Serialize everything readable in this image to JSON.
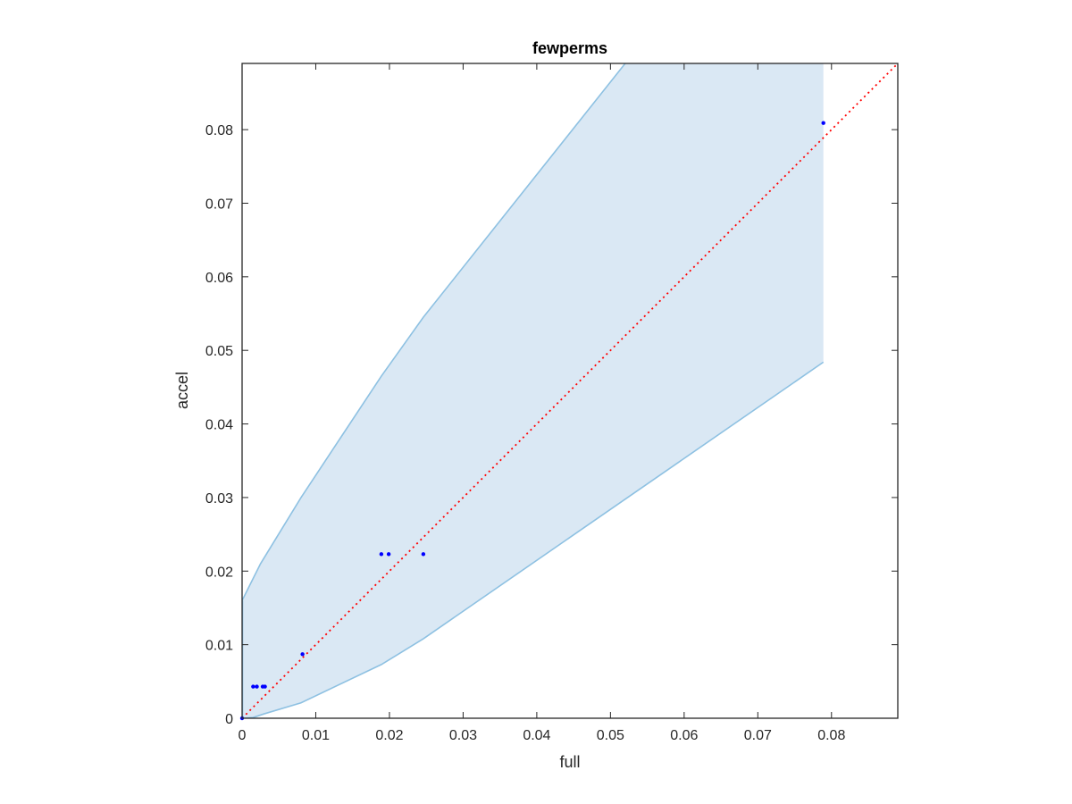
{
  "chart_data": {
    "type": "scatter",
    "title": "fewperms",
    "xlabel": "full",
    "ylabel": "accel",
    "xlim": [
      0,
      0.089
    ],
    "ylim": [
      0,
      0.089
    ],
    "xticks": [
      "0",
      "0.01",
      "0.02",
      "0.03",
      "0.04",
      "0.05",
      "0.06",
      "0.07",
      "0.08"
    ],
    "yticks": [
      "0",
      "0.01",
      "0.02",
      "0.03",
      "0.04",
      "0.05",
      "0.06",
      "0.07",
      "0.08"
    ],
    "grid": false,
    "box": true,
    "points": [
      [
        0,
        0
      ],
      [
        0.0015,
        0.0043
      ],
      [
        0.002,
        0.0043
      ],
      [
        0.0028,
        0.0043
      ],
      [
        0.0031,
        0.0043
      ],
      [
        0.0082,
        0.0087
      ],
      [
        0.0189,
        0.0223
      ],
      [
        0.0199,
        0.0223
      ],
      [
        0.0246,
        0.0223
      ],
      [
        0.0789,
        0.0809
      ]
    ],
    "band": {
      "upper": [
        [
          0,
          0.016
        ],
        [
          0.001,
          0.018
        ],
        [
          0.0025,
          0.021
        ],
        [
          0.008,
          0.03
        ],
        [
          0.0189,
          0.0465
        ],
        [
          0.0246,
          0.0545
        ],
        [
          0.052,
          0.089
        ]
      ],
      "lower": [
        [
          0,
          0
        ],
        [
          0.0015,
          0.0001
        ],
        [
          0.003,
          0.0006
        ],
        [
          0.008,
          0.0021
        ],
        [
          0.0189,
          0.0073
        ],
        [
          0.0246,
          0.0108
        ],
        [
          0.0789,
          0.0484
        ]
      ],
      "x_end": 0.0789
    },
    "reference_line": "y = x",
    "colors": {
      "points": "#0000ff",
      "band_fill": "#dae8f4",
      "band_edge": "#8ec1e2",
      "reference_line": "#ff0000",
      "axes": "#262626"
    }
  }
}
